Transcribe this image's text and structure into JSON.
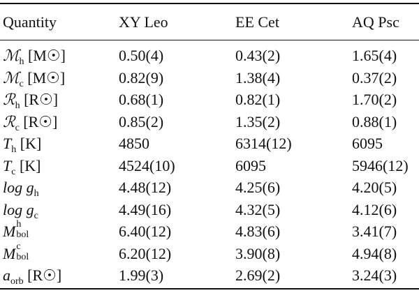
{
  "table": {
    "headers": [
      "Quantity",
      "XY Leo",
      "EE Cet",
      "AQ Psc"
    ],
    "rows": [
      {
        "quantity": {
          "symbol": "ℳ",
          "sub": "h",
          "sup": "",
          "unit": "[M☉]"
        },
        "values": [
          "0.50(4)",
          "0.43(2)",
          "1.65(4)"
        ]
      },
      {
        "quantity": {
          "symbol": "ℳ",
          "sub": "c",
          "sup": "",
          "unit": "[M☉]"
        },
        "values": [
          "0.82(9)",
          "1.38(4)",
          "0.37(2)"
        ]
      },
      {
        "quantity": {
          "symbol": "ℛ",
          "sub": "h",
          "sup": "",
          "unit": "[R☉]"
        },
        "values": [
          "0.68(1)",
          "0.82(1)",
          "1.70(2)"
        ]
      },
      {
        "quantity": {
          "symbol": "ℛ",
          "sub": "c",
          "sup": "",
          "unit": "[R☉]"
        },
        "values": [
          "0.85(2)",
          "1.35(2)",
          "0.88(1)"
        ]
      },
      {
        "quantity": {
          "symbol": "T",
          "sub": "h",
          "sup": "",
          "unit": "[K]"
        },
        "values": [
          "4850",
          "6314(12)",
          "6095"
        ]
      },
      {
        "quantity": {
          "symbol": "T",
          "sub": "c",
          "sup": "",
          "unit": "[K]"
        },
        "values": [
          "4524(10)",
          "6095",
          "5946(12)"
        ]
      },
      {
        "quantity": {
          "symbol": "log g",
          "sub": "h",
          "sup": "",
          "unit": ""
        },
        "values": [
          "4.48(12)",
          "4.25(6)",
          "4.20(5)"
        ]
      },
      {
        "quantity": {
          "symbol": "log g",
          "sub": "c",
          "sup": "",
          "unit": ""
        },
        "values": [
          "4.49(16)",
          "4.32(5)",
          "4.12(6)"
        ]
      },
      {
        "quantity": {
          "symbol": "M",
          "sub": "bol",
          "sup": "h",
          "unit": ""
        },
        "values": [
          "6.40(12)",
          "4.83(6)",
          "3.41(7)"
        ]
      },
      {
        "quantity": {
          "symbol": "M",
          "sub": "bol",
          "sup": "c",
          "unit": ""
        },
        "values": [
          "6.20(12)",
          "3.90(8)",
          "4.94(8)"
        ]
      },
      {
        "quantity": {
          "symbol": "a",
          "sub": "orb",
          "sup": "",
          "unit": "[R☉]"
        },
        "values": [
          "1.99(3)",
          "2.69(2)",
          "3.24(3)"
        ]
      }
    ]
  }
}
